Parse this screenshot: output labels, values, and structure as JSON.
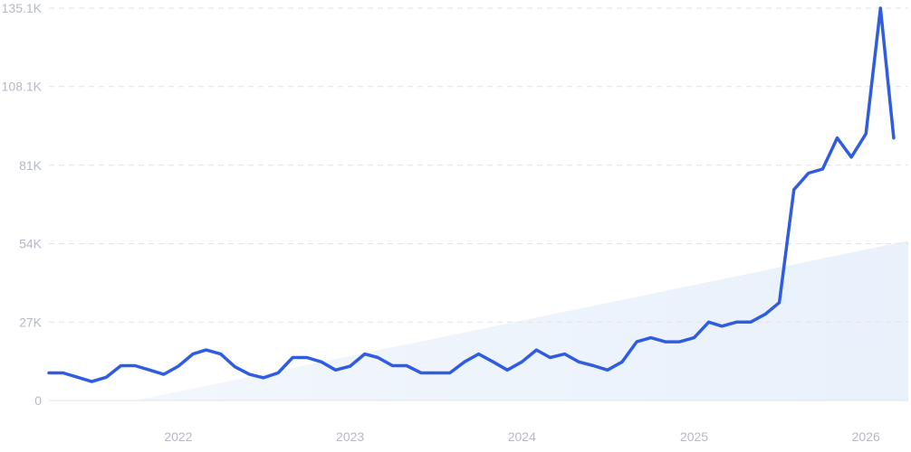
{
  "chart_data": {
    "type": "line",
    "y_ticks": [
      "0",
      "27K",
      "54K",
      "81K",
      "108.1K",
      "135.1K"
    ],
    "y_tick_values": [
      0,
      27000,
      54000,
      81000,
      108100,
      135100
    ],
    "ylim": [
      0,
      135100
    ],
    "x_ticks": [
      "2022",
      "2023",
      "2024",
      "2025",
      "2026"
    ],
    "x_tick_values": [
      "2022-01-01",
      "2023-01-01",
      "2024-01-01",
      "2025-01-01",
      "2026-01-01"
    ],
    "xlim": [
      "2021-04-01",
      "2026-04-01"
    ],
    "grid": true,
    "legend": "none",
    "colors": {
      "line": "#2f5ce0",
      "trend_fill": "#e8f0fb",
      "grid": "#dfe3ec",
      "tick_text": "#b4b9c6"
    },
    "trend": {
      "x": [
        "2021-10-01",
        "2026-04-01"
      ],
      "y": [
        0,
        55000
      ]
    },
    "series": [
      {
        "x": [
          "2021-04-01",
          "2021-05-01",
          "2021-06-01",
          "2021-07-01",
          "2021-08-01",
          "2021-09-01",
          "2021-10-01",
          "2021-11-01",
          "2021-12-01",
          "2022-01-01",
          "2022-02-01",
          "2022-03-01",
          "2022-04-01",
          "2022-05-01",
          "2022-06-01",
          "2022-07-01",
          "2022-08-01",
          "2022-09-01",
          "2022-10-01",
          "2022-11-01",
          "2022-12-01",
          "2023-01-01",
          "2023-02-01",
          "2023-03-01",
          "2023-04-01",
          "2023-05-01",
          "2023-06-01",
          "2023-07-01",
          "2023-08-01",
          "2023-09-01",
          "2023-10-01",
          "2023-11-01",
          "2023-12-01",
          "2024-01-01",
          "2024-02-01",
          "2024-03-01",
          "2024-04-01",
          "2024-05-01",
          "2024-06-01",
          "2024-07-01",
          "2024-08-01",
          "2024-09-01",
          "2024-10-01",
          "2024-11-01",
          "2024-12-01",
          "2025-01-01",
          "2025-02-01",
          "2025-03-01",
          "2025-04-01",
          "2025-05-01",
          "2025-06-01",
          "2025-07-01",
          "2025-08-01",
          "2025-09-01",
          "2025-10-01",
          "2025-11-01",
          "2025-12-01",
          "2026-01-01",
          "2026-02-01",
          "2026-03-01"
        ],
        "values": [
          9500,
          9500,
          8000,
          6500,
          8000,
          12000,
          12000,
          10500,
          9000,
          11800,
          16000,
          17400,
          16000,
          11600,
          9000,
          7800,
          9500,
          14800,
          14800,
          13300,
          10500,
          11800,
          16000,
          14800,
          12000,
          12000,
          9500,
          9500,
          9500,
          13300,
          16000,
          13300,
          10500,
          13300,
          17400,
          14800,
          16000,
          13300,
          12000,
          10500,
          13300,
          20200,
          21600,
          20200,
          20200,
          21600,
          27000,
          25600,
          27000,
          27000,
          29700,
          33700,
          72600,
          78300,
          79700,
          90400,
          83800,
          91800,
          135100,
          90400
        ]
      }
    ]
  }
}
